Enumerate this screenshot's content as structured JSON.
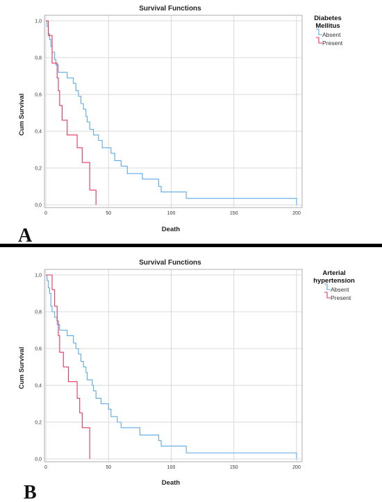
{
  "panels": [
    {
      "letter": "A",
      "legend_title": [
        "Diabetes",
        "Mellitus"
      ]
    },
    {
      "letter": "B",
      "legend_title": [
        "Arterial",
        "hypertension"
      ]
    }
  ],
  "colors": {
    "absent": "#5aa9e6",
    "present": "#e8335a",
    "grid": "#cfcfcf",
    "divider": "#000000"
  },
  "chart_data": [
    {
      "type": "line",
      "title": "Survival Functions",
      "xlabel": "Death",
      "ylabel": "Cum Survival",
      "xlim": [
        0,
        200
      ],
      "ylim": [
        0,
        1
      ],
      "x_ticks": [
        "0",
        "50",
        "100",
        "150",
        "200"
      ],
      "y_ticks": [
        "0,0",
        "0,2",
        "0,4",
        "0,6",
        "0,8",
        "1,0"
      ],
      "grid": true,
      "legend_position": "right",
      "series": [
        {
          "name": "Absent",
          "color": "#5aa9e6",
          "steps": [
            [
              0,
              1.0
            ],
            [
              1,
              0.97
            ],
            [
              2,
              0.93
            ],
            [
              3,
              0.9
            ],
            [
              4,
              0.86
            ],
            [
              5,
              0.83
            ],
            [
              7,
              0.79
            ],
            [
              8,
              0.76
            ],
            [
              10,
              0.72
            ],
            [
              17,
              0.69
            ],
            [
              22,
              0.66
            ],
            [
              24,
              0.62
            ],
            [
              26,
              0.59
            ],
            [
              28,
              0.55
            ],
            [
              30,
              0.52
            ],
            [
              32,
              0.48
            ],
            [
              33,
              0.45
            ],
            [
              35,
              0.41
            ],
            [
              38,
              0.38
            ],
            [
              42,
              0.35
            ],
            [
              45,
              0.31
            ],
            [
              52,
              0.28
            ],
            [
              55,
              0.24
            ],
            [
              60,
              0.21
            ],
            [
              65,
              0.17
            ],
            [
              77,
              0.14
            ],
            [
              90,
              0.1
            ],
            [
              92,
              0.07
            ],
            [
              112,
              0.035
            ],
            [
              200,
              0.0
            ]
          ]
        },
        {
          "name": "Present",
          "color": "#e8335a",
          "steps": [
            [
              0,
              1.0
            ],
            [
              2,
              0.92
            ],
            [
              5,
              0.77
            ],
            [
              9,
              0.69
            ],
            [
              10,
              0.62
            ],
            [
              11,
              0.54
            ],
            [
              13,
              0.46
            ],
            [
              17,
              0.38
            ],
            [
              25,
              0.31
            ],
            [
              29,
              0.23
            ],
            [
              35,
              0.08
            ],
            [
              40,
              0.0
            ]
          ]
        }
      ]
    },
    {
      "type": "line",
      "title": "Survival Functions",
      "xlabel": "Death",
      "ylabel": "Cum Survival",
      "xlim": [
        0,
        200
      ],
      "ylim": [
        0,
        1
      ],
      "x_ticks": [
        "0",
        "50",
        "100",
        "150",
        "200"
      ],
      "y_ticks": [
        "0,0",
        "0,2",
        "0,4",
        "0,6",
        "0,8",
        "1,0"
      ],
      "grid": true,
      "legend_position": "right",
      "series": [
        {
          "name": "Absent",
          "color": "#5aa9e6",
          "steps": [
            [
              0,
              1.0
            ],
            [
              1,
              0.97
            ],
            [
              2,
              0.93
            ],
            [
              3,
              0.9
            ],
            [
              4,
              0.83
            ],
            [
              5,
              0.8
            ],
            [
              7,
              0.77
            ],
            [
              9,
              0.73
            ],
            [
              11,
              0.7
            ],
            [
              17,
              0.67
            ],
            [
              22,
              0.63
            ],
            [
              24,
              0.6
            ],
            [
              26,
              0.57
            ],
            [
              28,
              0.53
            ],
            [
              30,
              0.5
            ],
            [
              32,
              0.47
            ],
            [
              33,
              0.43
            ],
            [
              37,
              0.4
            ],
            [
              38,
              0.37
            ],
            [
              40,
              0.33
            ],
            [
              44,
              0.3
            ],
            [
              50,
              0.27
            ],
            [
              52,
              0.23
            ],
            [
              57,
              0.2
            ],
            [
              60,
              0.17
            ],
            [
              65,
              0.17
            ],
            [
              75,
              0.13
            ],
            [
              90,
              0.1
            ],
            [
              92,
              0.07
            ],
            [
              112,
              0.033
            ],
            [
              200,
              0.0
            ]
          ]
        },
        {
          "name": "Present",
          "color": "#e8335a",
          "steps": [
            [
              0,
              1.0
            ],
            [
              3,
              1.0
            ],
            [
              5,
              0.92
            ],
            [
              7,
              0.83
            ],
            [
              9,
              0.75
            ],
            [
              10,
              0.67
            ],
            [
              11,
              0.58
            ],
            [
              14,
              0.5
            ],
            [
              18,
              0.42
            ],
            [
              25,
              0.33
            ],
            [
              27,
              0.25
            ],
            [
              29,
              0.17
            ],
            [
              35,
              0.0
            ]
          ]
        }
      ]
    }
  ]
}
